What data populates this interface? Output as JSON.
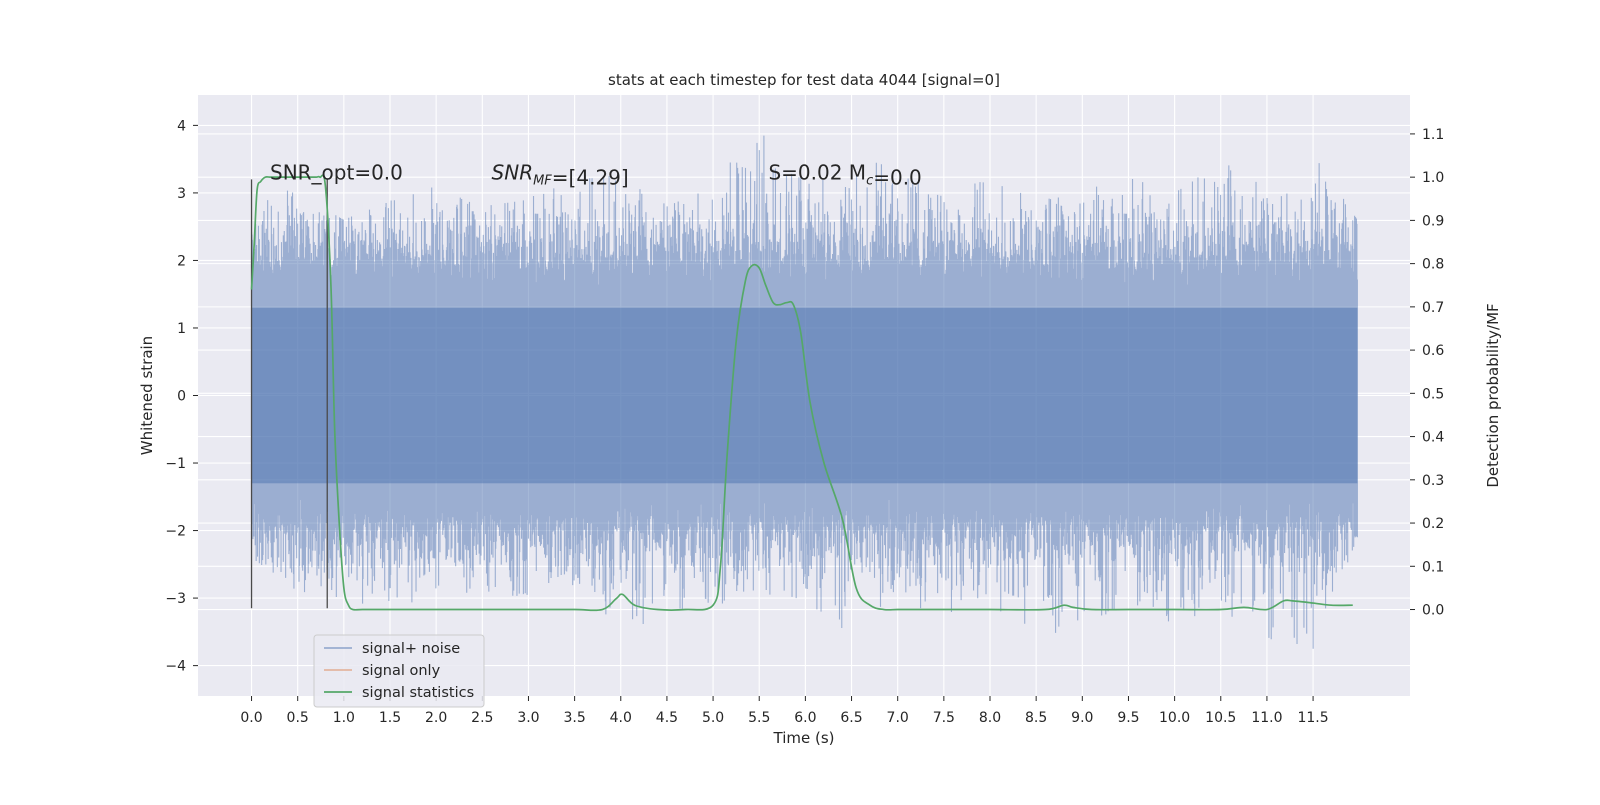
{
  "chart_data": {
    "type": "line",
    "title": "stats at each timestep for test data 4044 [signal=0]",
    "xlabel": "Time (s)",
    "ylabel": "Whitened strain",
    "ylabel_right": "Detection probability/MF",
    "xlim": [
      -0.58,
      12.55
    ],
    "ylim": [
      -4.45,
      4.45
    ],
    "ylim_right": [
      -0.2,
      1.19
    ],
    "xticks": [
      0.0,
      0.5,
      1.0,
      1.5,
      2.0,
      2.5,
      3.0,
      3.5,
      4.0,
      4.5,
      5.0,
      5.5,
      6.0,
      6.5,
      7.0,
      7.5,
      8.0,
      8.5,
      9.0,
      9.5,
      10.0,
      10.5,
      11.0,
      11.5
    ],
    "xtick_labels": [
      "0.0",
      "0.5",
      "1.0",
      "1.5",
      "2.0",
      "2.5",
      "3.0",
      "3.5",
      "4.0",
      "4.5",
      "5.0",
      "5.5",
      "6.0",
      "6.5",
      "7.0",
      "7.5",
      "8.0",
      "8.5",
      "9.0",
      "9.5",
      "10.0",
      "10.5",
      "11.0",
      "11.5"
    ],
    "yticks": [
      -4,
      -3,
      -2,
      -1,
      0,
      1,
      2,
      3,
      4
    ],
    "ytick_labels": [
      "−4",
      "−3",
      "−2",
      "−1",
      "0",
      "1",
      "2",
      "3",
      "4"
    ],
    "yticks_right": [
      0.0,
      0.1,
      0.2,
      0.3,
      0.4,
      0.5,
      0.6,
      0.7,
      0.8,
      0.9,
      1.0,
      1.1
    ],
    "ytick_right_labels": [
      "0.0",
      "0.1",
      "0.2",
      "0.3",
      "0.4",
      "0.5",
      "0.6",
      "0.7",
      "0.8",
      "0.9",
      "1.0",
      "1.1"
    ],
    "grid": true,
    "legend_position": "lower-left",
    "annotations": [
      {
        "text": "SNR_opt=0.0",
        "x": 0.2,
        "y": 3.2
      },
      {
        "text": "SNR_MF=[4.29]",
        "x": 2.6,
        "y": 3.2
      },
      {
        "text": "S=0.02   M_c=0.0",
        "x": 5.6,
        "y": 3.2
      }
    ],
    "marker_lines": [
      {
        "x": 0.0,
        "y": [
          -3.15,
          3.2
        ]
      },
      {
        "x": 0.82,
        "y": [
          -3.15,
          3.2
        ]
      }
    ],
    "series": [
      {
        "name": "signal+ noise",
        "color": "#4c72b0",
        "axis": "left",
        "x_range": [
          0.0,
          11.98
        ],
        "envelope": {
          "x": [
            0.0,
            0.5,
            1.0,
            1.5,
            2.0,
            2.5,
            3.0,
            3.5,
            4.0,
            4.5,
            5.0,
            5.5,
            6.0,
            6.5,
            7.0,
            7.5,
            8.0,
            8.5,
            9.0,
            9.5,
            10.0,
            10.5,
            11.0,
            11.5,
            11.98
          ],
          "max": [
            3.15,
            3.0,
            2.6,
            2.9,
            3.1,
            2.8,
            2.9,
            3.4,
            3.5,
            2.8,
            3.1,
            4.1,
            3.2,
            3.5,
            3.4,
            3.1,
            3.2,
            2.9,
            3.0,
            3.3,
            3.2,
            3.7,
            3.0,
            3.6,
            2.6
          ],
          "min": [
            -2.4,
            -2.9,
            -3.0,
            -3.2,
            -3.0,
            -2.9,
            -3.0,
            -2.8,
            -3.6,
            -3.2,
            -3.1,
            -3.0,
            -3.0,
            -3.7,
            -3.2,
            -3.3,
            -3.1,
            -3.7,
            -3.3,
            -3.2,
            -3.5,
            -3.2,
            -3.6,
            -3.8,
            -2.1
          ]
        }
      },
      {
        "name": "signal only",
        "color": "#dd8452",
        "axis": "left",
        "x": [],
        "y": []
      },
      {
        "name": "signal statistics",
        "color": "#55a868",
        "axis": "right",
        "x": [
          0.0,
          0.03,
          0.06,
          0.1,
          0.15,
          0.2,
          0.3,
          0.4,
          0.5,
          0.6,
          0.7,
          0.74,
          0.8,
          0.86,
          0.9,
          0.95,
          1.0,
          1.05,
          1.1,
          1.2,
          1.5,
          2.0,
          2.2,
          2.5,
          3.0,
          3.5,
          3.8,
          3.95,
          4.02,
          4.15,
          4.4,
          4.7,
          5.0,
          5.08,
          5.15,
          5.25,
          5.35,
          5.42,
          5.5,
          5.57,
          5.65,
          5.72,
          5.8,
          5.87,
          5.95,
          6.05,
          6.2,
          6.4,
          6.55,
          6.7,
          6.85,
          7.0,
          7.2,
          7.5,
          8.0,
          8.6,
          8.8,
          8.9,
          9.1,
          9.5,
          10.0,
          10.5,
          10.75,
          11.0,
          11.18,
          11.28,
          11.5,
          11.7,
          11.93
        ],
        "y": [
          0.74,
          0.85,
          0.97,
          0.99,
          1.0,
          1.0,
          1.0,
          1.0,
          1.0,
          1.0,
          1.0,
          1.0,
          0.98,
          0.75,
          0.42,
          0.2,
          0.05,
          0.01,
          0.0,
          0.0,
          0.0,
          0.0,
          0.0,
          0.0,
          0.0,
          0.0,
          0.0,
          0.025,
          0.035,
          0.01,
          0.0,
          0.0,
          0.01,
          0.1,
          0.35,
          0.62,
          0.76,
          0.795,
          0.79,
          0.75,
          0.71,
          0.705,
          0.71,
          0.705,
          0.64,
          0.48,
          0.34,
          0.21,
          0.05,
          0.01,
          0.0,
          0.0,
          0.0,
          0.0,
          0.0,
          0.0,
          0.01,
          0.005,
          0.0,
          0.0,
          0.0,
          0.0,
          0.005,
          0.0,
          0.02,
          0.02,
          0.015,
          0.01,
          0.01
        ]
      }
    ]
  }
}
